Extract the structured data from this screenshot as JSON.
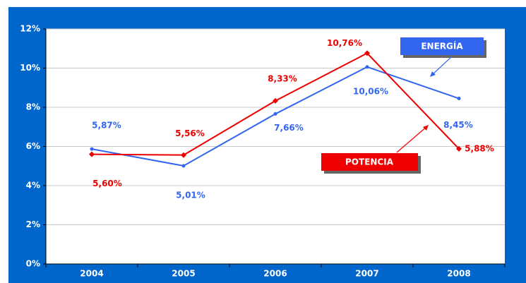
{
  "chart_data": {
    "type": "line",
    "categories": [
      "2004",
      "2005",
      "2006",
      "2007",
      "2008"
    ],
    "series": [
      {
        "name": "ENERGÍA",
        "color": "#3366ee",
        "values": [
          5.87,
          5.01,
          7.66,
          10.06,
          8.45
        ],
        "value_labels": [
          "5,87%",
          "5,01%",
          "7,66%",
          "10,06%",
          "8,45%"
        ]
      },
      {
        "name": "POTENCIA",
        "color": "#ee0000",
        "values": [
          5.6,
          5.56,
          8.33,
          10.76,
          5.88
        ],
        "value_labels": [
          "5,60%",
          "5,56%",
          "8,33%",
          "10,76%",
          "5,88%"
        ]
      }
    ],
    "ylim": [
      0,
      12
    ],
    "yticks": [
      {
        "value": 0,
        "label": "0%"
      },
      {
        "value": 2,
        "label": "2%"
      },
      {
        "value": 4,
        "label": "4%"
      },
      {
        "value": 6,
        "label": "6%"
      },
      {
        "value": 8,
        "label": "8%"
      },
      {
        "value": 10,
        "label": "10%"
      },
      {
        "value": 12,
        "label": "12%"
      }
    ],
    "grid": true
  }
}
